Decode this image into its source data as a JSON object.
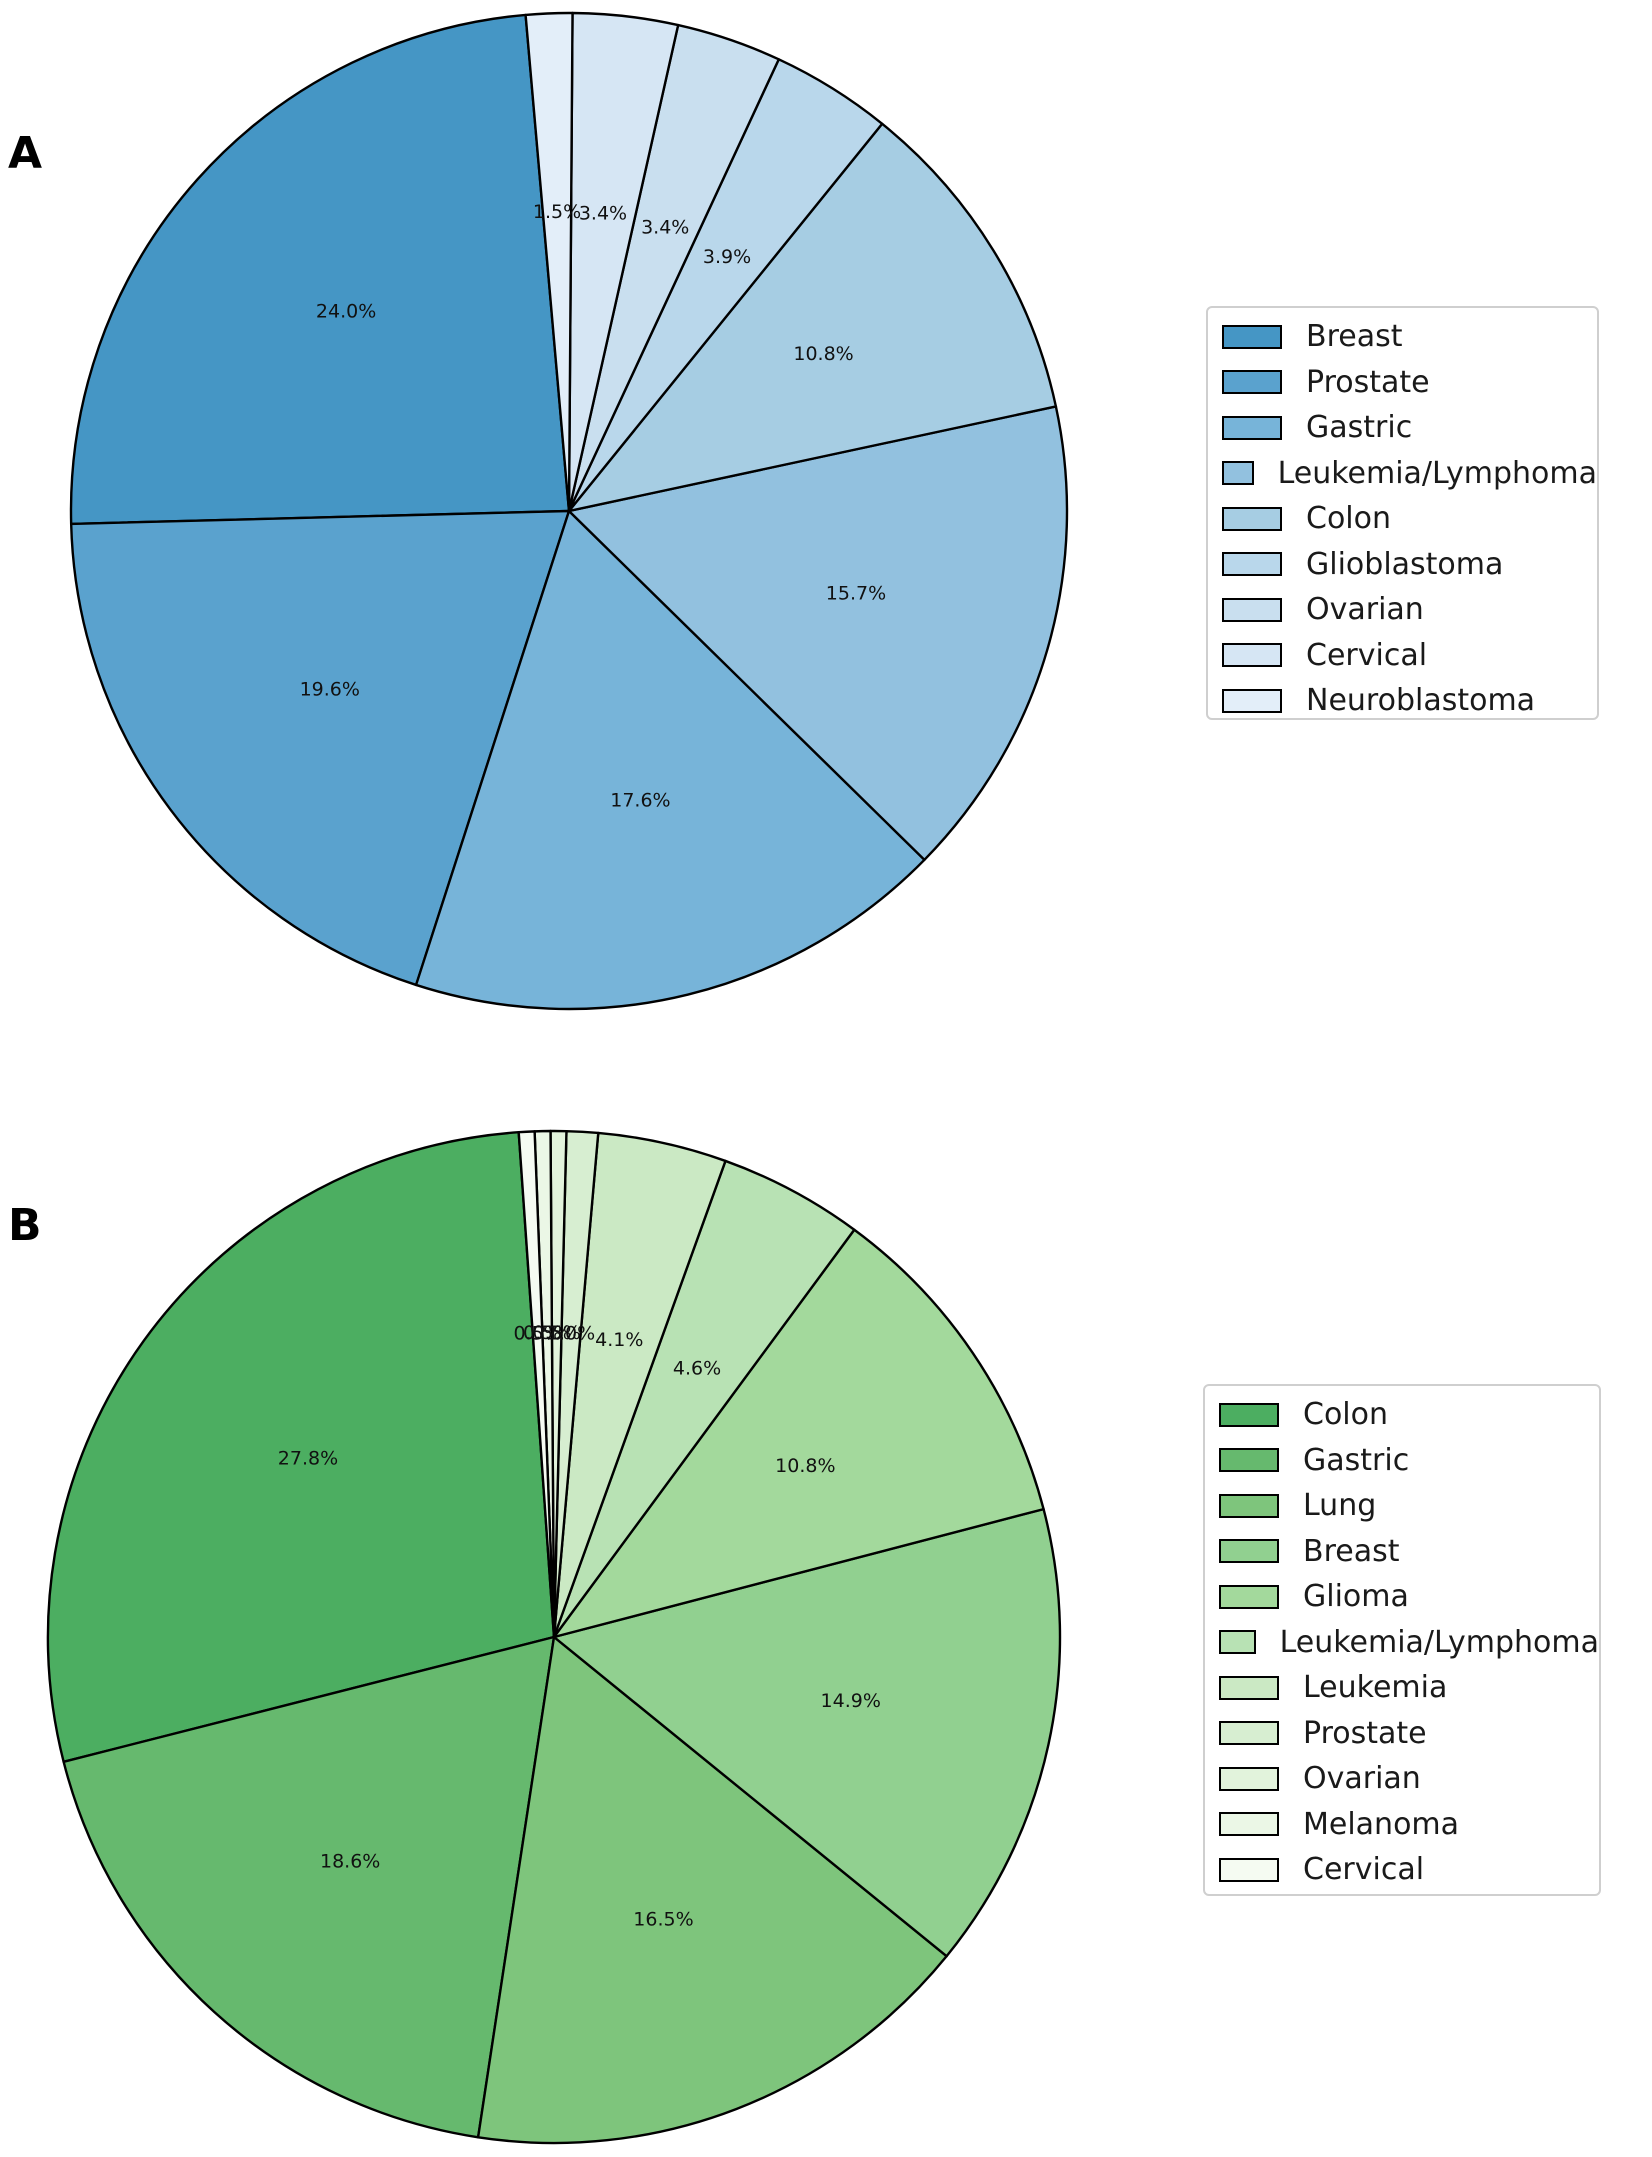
{
  "figure": {
    "panels": [
      {
        "panel_label": "A",
        "chart_key": 0
      },
      {
        "panel_label": "B",
        "chart_key": 1
      }
    ]
  },
  "chart_data": [
    {
      "type": "pie",
      "panel": "A",
      "title": "",
      "labels": [
        "Breast",
        "Prostate",
        "Gastric",
        "Leukemia/Lymphoma",
        "Colon",
        "Glioblastoma",
        "Ovarian",
        "Cervical",
        "Neuroblastoma"
      ],
      "values": [
        24.0,
        19.6,
        17.6,
        15.7,
        10.8,
        3.9,
        3.4,
        3.4,
        1.5
      ],
      "pct_labels": [
        "24.0%",
        "19.6%",
        "17.6%",
        "15.7%",
        "10.8%",
        "3.9%",
        "3.4%",
        "3.4%",
        "1.5%"
      ],
      "colors": [
        "#4596c5",
        "#5aa2ce",
        "#77b4d9",
        "#92c1df",
        "#a6cde3",
        "#b9d7eb",
        "#c9dfef",
        "#d6e6f4",
        "#e3eef9"
      ],
      "start_angle_deg": 95,
      "direction": "counterclockwise",
      "edge_color": "#000000",
      "legend_position": "right"
    },
    {
      "type": "pie",
      "panel": "B",
      "title": "",
      "labels": [
        "Colon",
        "Gastric",
        "Lung",
        "Breast",
        "Glioma",
        "Leukemia/Lymphoma",
        "Leukemia",
        "Prostate",
        "Ovarian",
        "Melanoma",
        "Cervical"
      ],
      "values": [
        27.8,
        18.6,
        16.5,
        14.9,
        10.8,
        4.6,
        4.1,
        1.0,
        0.5,
        0.5,
        0.5
      ],
      "pct_labels": [
        "27.8%",
        "18.6%",
        "16.5%",
        "14.9%",
        "10.8%",
        "4.6%",
        "4.1%",
        "1.0%",
        "0.5%",
        "0.5%",
        "0.5%"
      ],
      "colors": [
        "#4cae61",
        "#66b96e",
        "#7ec57c",
        "#91d090",
        "#a3d99c",
        "#b8e2b4",
        "#cbe9c4",
        "#d7eed1",
        "#e2f3dc",
        "#ebf7e6",
        "#f5fbf2"
      ],
      "start_angle_deg": 94,
      "direction": "counterclockwise",
      "edge_color": "#000000",
      "legend_position": "right"
    }
  ]
}
